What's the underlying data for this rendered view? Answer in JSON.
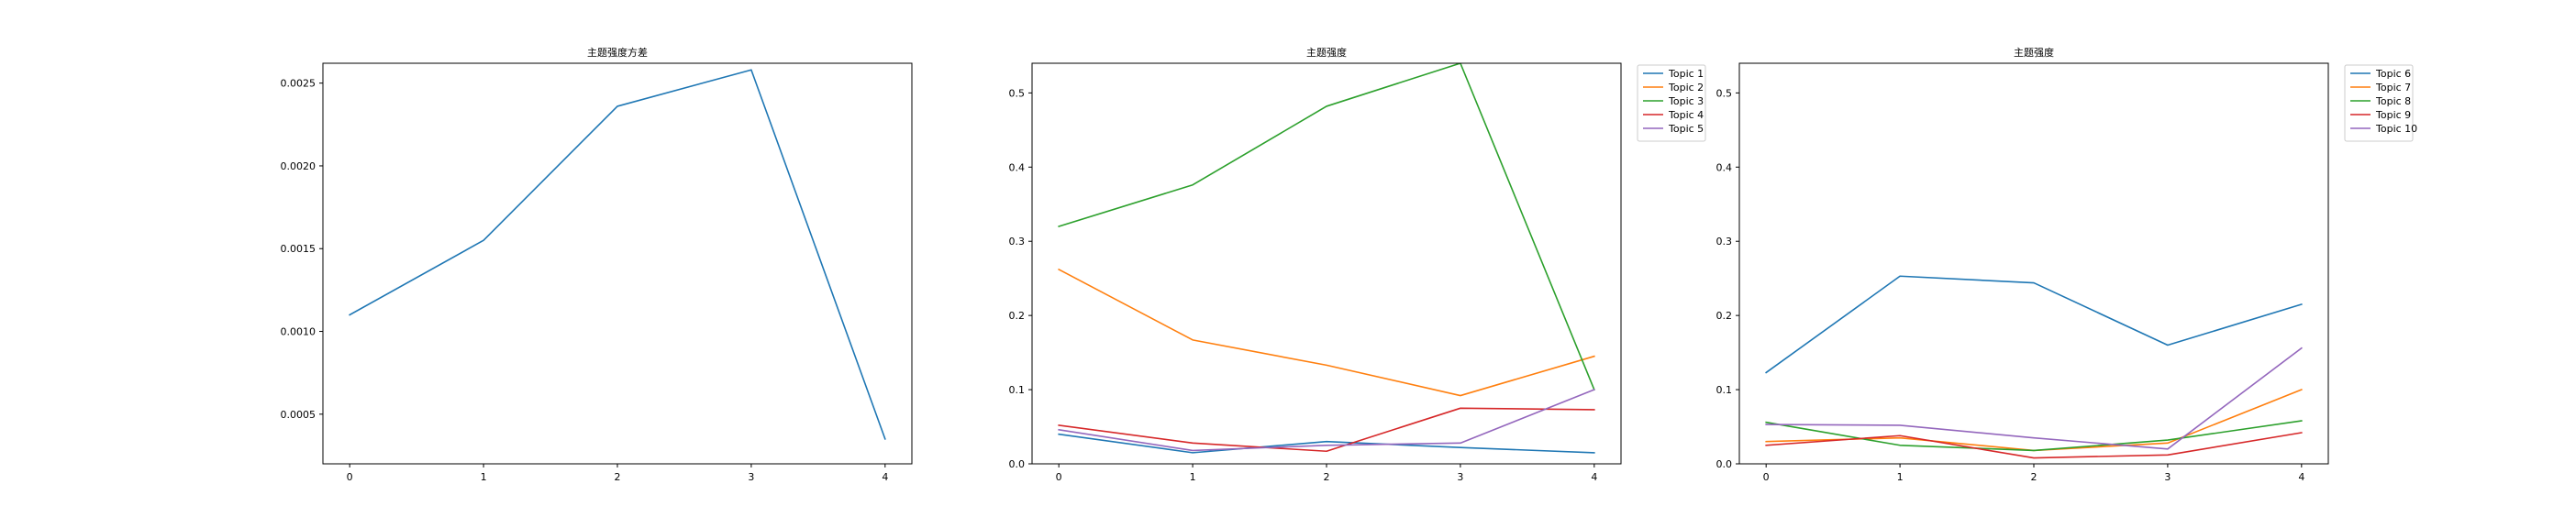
{
  "chart_data": [
    {
      "type": "line",
      "title": "主题强度方差",
      "xlabel": "",
      "ylabel": "",
      "x": [
        0,
        1,
        2,
        3,
        4
      ],
      "xticks": [
        "0",
        "1",
        "2",
        "3",
        "4"
      ],
      "ylim": [
        0.0002,
        0.00262
      ],
      "yticks": [
        0.0005,
        0.001,
        0.0015,
        0.002,
        0.0025
      ],
      "ytick_labels": [
        "0.0005",
        "0.0010",
        "0.0015",
        "0.0020",
        "0.0025"
      ],
      "grid": false,
      "legend": null,
      "series": [
        {
          "values": [
            0.0011,
            0.00155,
            0.00236,
            0.00258,
            0.00035
          ],
          "color": "#1f77b4"
        }
      ]
    },
    {
      "type": "line",
      "title": "主题强度",
      "xlabel": "",
      "ylabel": "",
      "x": [
        0,
        1,
        2,
        3,
        4
      ],
      "xticks": [
        "0",
        "1",
        "2",
        "3",
        "4"
      ],
      "ylim": [
        0.0,
        0.54
      ],
      "yticks": [
        0.0,
        0.1,
        0.2,
        0.3,
        0.4,
        0.5
      ],
      "ytick_labels": [
        "0.0",
        "0.1",
        "0.2",
        "0.3",
        "0.4",
        "0.5"
      ],
      "grid": false,
      "legend": "outside-top-right",
      "series": [
        {
          "name": "Topic 1",
          "values": [
            0.04,
            0.015,
            0.03,
            0.022,
            0.015
          ],
          "color": "#1f77b4"
        },
        {
          "name": "Topic 2",
          "values": [
            0.262,
            0.167,
            0.133,
            0.092,
            0.145
          ],
          "color": "#ff7f0e"
        },
        {
          "name": "Topic 3",
          "values": [
            0.32,
            0.376,
            0.482,
            0.54,
            0.1
          ],
          "color": "#2ca02c"
        },
        {
          "name": "Topic 4",
          "values": [
            0.052,
            0.028,
            0.017,
            0.075,
            0.073
          ],
          "color": "#d62728"
        },
        {
          "name": "Topic 5",
          "values": [
            0.046,
            0.018,
            0.025,
            0.028,
            0.1
          ],
          "color": "#9467bd"
        }
      ]
    },
    {
      "type": "line",
      "title": "主题强度",
      "xlabel": "",
      "ylabel": "",
      "x": [
        0,
        1,
        2,
        3,
        4
      ],
      "xticks": [
        "0",
        "1",
        "2",
        "3",
        "4"
      ],
      "ylim": [
        0.0,
        0.54
      ],
      "yticks": [
        0.0,
        0.1,
        0.2,
        0.3,
        0.4,
        0.5
      ],
      "ytick_labels": [
        "0.0",
        "0.1",
        "0.2",
        "0.3",
        "0.4",
        "0.5"
      ],
      "grid": false,
      "legend": "outside-top-right",
      "series": [
        {
          "name": "Topic 6",
          "values": [
            0.123,
            0.253,
            0.244,
            0.16,
            0.215
          ],
          "color": "#1f77b4"
        },
        {
          "name": "Topic 7",
          "values": [
            0.03,
            0.035,
            0.018,
            0.028,
            0.1
          ],
          "color": "#ff7f0e"
        },
        {
          "name": "Topic 8",
          "values": [
            0.056,
            0.025,
            0.018,
            0.032,
            0.058
          ],
          "color": "#2ca02c"
        },
        {
          "name": "Topic 9",
          "values": [
            0.025,
            0.038,
            0.008,
            0.012,
            0.042
          ],
          "color": "#d62728"
        },
        {
          "name": "Topic 10",
          "values": [
            0.053,
            0.052,
            0.035,
            0.02,
            0.156
          ],
          "color": "#9467bd"
        }
      ]
    }
  ]
}
